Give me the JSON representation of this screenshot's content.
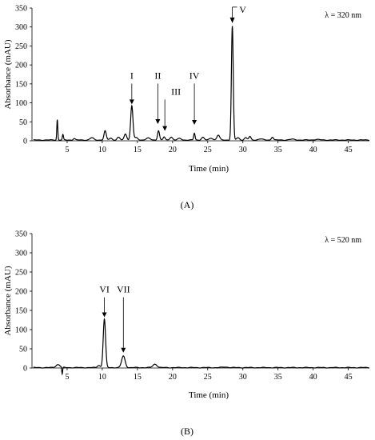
{
  "chart_data": [
    {
      "type": "line",
      "panel_label": "(A)",
      "wavelength_label": "λ = 320 nm",
      "xlabel": "Time (min)",
      "ylabel": "Absorbance (mAU)",
      "xlim": [
        0,
        48
      ],
      "ylim": [
        0,
        350
      ],
      "xticks": [
        5,
        10,
        15,
        20,
        25,
        30,
        35,
        40,
        45
      ],
      "yticks": [
        0,
        50,
        100,
        150,
        200,
        250,
        300,
        350
      ],
      "grid": false,
      "baseline": 2,
      "peaks": [
        {
          "rt": 3.6,
          "height": 54,
          "width": 0.07
        },
        {
          "rt": 4.4,
          "height": 14,
          "width": 0.08
        },
        {
          "rt": 6.0,
          "height": 4,
          "width": 0.15
        },
        {
          "rt": 8.5,
          "height": 6,
          "width": 0.25
        },
        {
          "rt": 10.4,
          "height": 24,
          "width": 0.16
        },
        {
          "rt": 11.2,
          "height": 5,
          "width": 0.2
        },
        {
          "rt": 12.3,
          "height": 7,
          "width": 0.2
        },
        {
          "rt": 13.3,
          "height": 16,
          "width": 0.18
        },
        {
          "rt": 14.2,
          "height": 90,
          "width": 0.16
        },
        {
          "rt": 14.8,
          "height": 6,
          "width": 0.25
        },
        {
          "rt": 16.5,
          "height": 5,
          "width": 0.3
        },
        {
          "rt": 18.0,
          "height": 25,
          "width": 0.14
        },
        {
          "rt": 18.8,
          "height": 8,
          "width": 0.14
        },
        {
          "rt": 19.8,
          "height": 8,
          "width": 0.2
        },
        {
          "rt": 21.0,
          "height": 4,
          "width": 0.25
        },
        {
          "rt": 23.1,
          "height": 18,
          "width": 0.1
        },
        {
          "rt": 24.3,
          "height": 7,
          "width": 0.2
        },
        {
          "rt": 25.5,
          "height": 5,
          "width": 0.25
        },
        {
          "rt": 26.5,
          "height": 13,
          "width": 0.2
        },
        {
          "rt": 28.5,
          "height": 300,
          "width": 0.13
        },
        {
          "rt": 29.3,
          "height": 6,
          "width": 0.2
        },
        {
          "rt": 30.4,
          "height": 6,
          "width": 0.2
        },
        {
          "rt": 31.0,
          "height": 9,
          "width": 0.15
        },
        {
          "rt": 32.5,
          "height": 3,
          "width": 0.3
        },
        {
          "rt": 34.2,
          "height": 8,
          "width": 0.15
        },
        {
          "rt": 37.0,
          "height": 2,
          "width": 0.4
        },
        {
          "rt": 40.5,
          "height": 1.5,
          "width": 0.4
        }
      ],
      "annotations": [
        {
          "label": "I",
          "x": 14.2,
          "y": 92,
          "text_y": 172
        },
        {
          "label": "II",
          "x": 17.9,
          "y": 40,
          "text_y": 172
        },
        {
          "label": "III",
          "x": 18.9,
          "y": 22,
          "text_y": 130
        },
        {
          "label": "IV",
          "x": 23.1,
          "y": 38,
          "text_y": 172
        },
        {
          "label": "V",
          "x": 28.5,
          "y": 306,
          "text_y": 390,
          "style": "bracket"
        }
      ]
    },
    {
      "type": "line",
      "panel_label": "(B)",
      "wavelength_label": "λ = 520 nm",
      "xlabel": "Time (min)",
      "ylabel": "Absorbance (mAU)",
      "xlim": [
        0,
        48
      ],
      "ylim": [
        0,
        350
      ],
      "xticks": [
        5,
        10,
        15,
        20,
        25,
        30,
        35,
        40,
        45
      ],
      "yticks": [
        0,
        50,
        100,
        150,
        200,
        250,
        300,
        350
      ],
      "grid": false,
      "baseline": 1,
      "peaks": [
        {
          "rt": 3.7,
          "height": 8,
          "width": 0.3
        },
        {
          "rt": 4.3,
          "height": -18,
          "width": 0.06
        },
        {
          "rt": 9.5,
          "height": 6,
          "width": 0.2
        },
        {
          "rt": 10.3,
          "height": 126,
          "width": 0.17
        },
        {
          "rt": 13.0,
          "height": 30,
          "width": 0.25
        },
        {
          "rt": 17.5,
          "height": 9,
          "width": 0.3
        },
        {
          "rt": 27.5,
          "height": 1.5,
          "width": 0.4
        }
      ],
      "annotations": [
        {
          "label": "VI",
          "x": 10.3,
          "y": 128,
          "text_y": 205
        },
        {
          "label": "VII",
          "x": 13.0,
          "y": 36,
          "text_y": 205
        }
      ]
    }
  ]
}
